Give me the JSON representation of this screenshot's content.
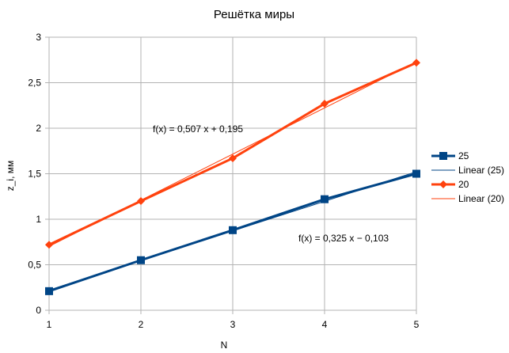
{
  "chart_data": {
    "type": "line",
    "title": "Решётка миры",
    "xlabel": "N",
    "ylabel": "z_i, мм",
    "x": [
      1,
      2,
      3,
      4,
      5
    ],
    "xlim": [
      1,
      5
    ],
    "ylim": [
      0,
      3
    ],
    "x_ticks": [
      "1",
      "2",
      "3",
      "4",
      "5"
    ],
    "y_ticks": [
      {
        "value": 0,
        "label": "0"
      },
      {
        "value": 0.5,
        "label": "0,5"
      },
      {
        "value": 1,
        "label": "1"
      },
      {
        "value": 1.5,
        "label": "1,5"
      },
      {
        "value": 2,
        "label": "2"
      },
      {
        "value": 2.5,
        "label": "2,5"
      },
      {
        "value": 3,
        "label": "3"
      }
    ],
    "grid": true,
    "legend_position": "right",
    "series": [
      {
        "name": "25",
        "values": [
          0.21,
          0.55,
          0.88,
          1.22,
          1.5
        ],
        "color": "#004586",
        "marker": "square"
      },
      {
        "name": "20",
        "values": [
          0.72,
          1.2,
          1.67,
          2.27,
          2.72
        ],
        "color": "#ff420e",
        "marker": "diamond"
      }
    ],
    "trendlines": [
      {
        "name": "Linear (25)",
        "series": "25",
        "slope": 0.325,
        "intercept": -0.103,
        "color": "#004586",
        "equation": "f(x) = 0,325 x − 0,103"
      },
      {
        "name": "Linear (20)",
        "series": "20",
        "slope": 0.507,
        "intercept": 0.195,
        "color": "#ff420e",
        "equation": "f(x) = 0,507 x + 0,195"
      }
    ]
  }
}
